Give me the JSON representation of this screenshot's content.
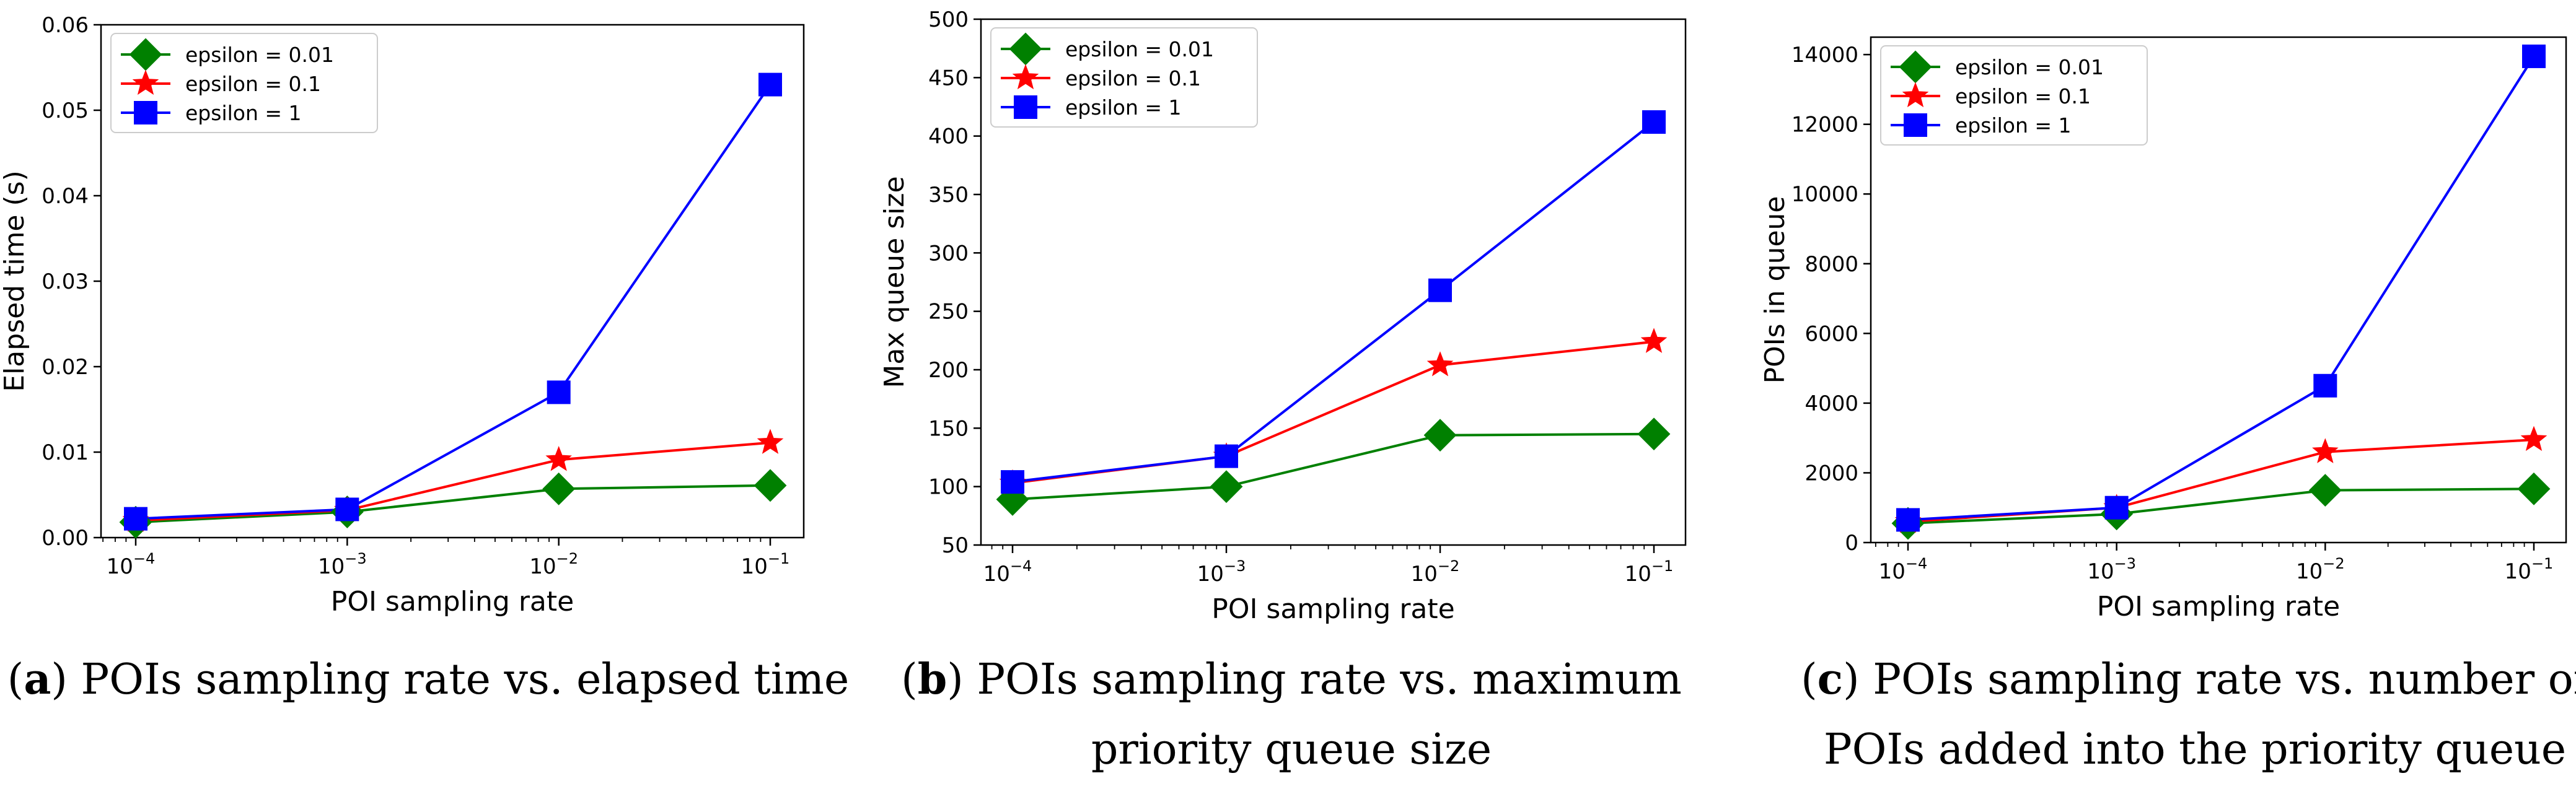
{
  "figure": {
    "captions": [
      {
        "letter": "a",
        "lines": [
          "POIs sampling rate vs. elapsed time"
        ]
      },
      {
        "letter": "b",
        "lines": [
          "POIs sampling rate vs. maximum",
          "priority queue size"
        ]
      },
      {
        "letter": "c",
        "lines": [
          "POIs sampling rate vs. number of",
          "POIs added into the priority queue"
        ]
      }
    ]
  },
  "chart_data": [
    {
      "type": "line",
      "title": "",
      "xlabel": "POI sampling rate",
      "ylabel": "Elapsed time (s)",
      "xscale": "log",
      "x": [
        0.0001,
        0.001,
        0.01,
        0.1
      ],
      "x_ticks": [
        {
          "base": "10",
          "exp": "−4"
        },
        {
          "base": "10",
          "exp": "−3"
        },
        {
          "base": "10",
          "exp": "−2"
        },
        {
          "base": "10",
          "exp": "−1"
        }
      ],
      "ylim": [
        0,
        0.06
      ],
      "y_ticks": [
        0,
        0.01,
        0.02,
        0.03,
        0.04,
        0.05,
        0.06
      ],
      "y_tick_labels": [
        "0.00",
        "0.01",
        "0.02",
        "0.03",
        "0.04",
        "0.05",
        "0.06"
      ],
      "legend_position": "top-left",
      "series": [
        {
          "name": "epsilon = 0.01",
          "color": "#008000",
          "marker": "diamond",
          "values": [
            0.0018,
            0.003,
            0.0057,
            0.0061
          ]
        },
        {
          "name": "epsilon = 0.1",
          "color": "#ff0000",
          "marker": "star",
          "values": [
            0.002,
            0.0032,
            0.0091,
            0.0111
          ]
        },
        {
          "name": "epsilon = 1",
          "color": "#0000ff",
          "marker": "square",
          "values": [
            0.0022,
            0.0033,
            0.017,
            0.053
          ]
        }
      ]
    },
    {
      "type": "line",
      "title": "",
      "xlabel": "POI sampling rate",
      "ylabel": "Max queue size",
      "xscale": "log",
      "x": [
        0.0001,
        0.001,
        0.01,
        0.1
      ],
      "x_ticks": [
        {
          "base": "10",
          "exp": "−4"
        },
        {
          "base": "10",
          "exp": "−3"
        },
        {
          "base": "10",
          "exp": "−2"
        },
        {
          "base": "10",
          "exp": "−1"
        }
      ],
      "ylim": [
        50,
        500
      ],
      "y_ticks": [
        50,
        100,
        150,
        200,
        250,
        300,
        350,
        400,
        450,
        500
      ],
      "y_tick_labels": [
        "50",
        "100",
        "150",
        "200",
        "250",
        "300",
        "350",
        "400",
        "450",
        "500"
      ],
      "legend_position": "top-left",
      "series": [
        {
          "name": "epsilon = 0.01",
          "color": "#008000",
          "marker": "diamond",
          "values": [
            89,
            100,
            144,
            145
          ]
        },
        {
          "name": "epsilon = 0.1",
          "color": "#ff0000",
          "marker": "star",
          "values": [
            103,
            126,
            204,
            224
          ]
        },
        {
          "name": "epsilon = 1",
          "color": "#0000ff",
          "marker": "square",
          "values": [
            104,
            126,
            268,
            412
          ]
        }
      ]
    },
    {
      "type": "line",
      "title": "",
      "xlabel": "POI sampling rate",
      "ylabel": "POIs in queue",
      "xscale": "log",
      "x": [
        0.0001,
        0.001,
        0.01,
        0.1
      ],
      "x_ticks": [
        {
          "base": "10",
          "exp": "−4"
        },
        {
          "base": "10",
          "exp": "−3"
        },
        {
          "base": "10",
          "exp": "−2"
        },
        {
          "base": "10",
          "exp": "−1"
        }
      ],
      "ylim": [
        0,
        14500
      ],
      "y_ticks": [
        0,
        2000,
        4000,
        6000,
        8000,
        10000,
        12000,
        14000
      ],
      "y_tick_labels": [
        "0",
        "2000",
        "4000",
        "6000",
        "8000",
        "10000",
        "12000",
        "14000"
      ],
      "legend_position": "top-left",
      "series": [
        {
          "name": "epsilon = 0.01",
          "color": "#008000",
          "marker": "diamond",
          "values": [
            550,
            820,
            1500,
            1540
          ]
        },
        {
          "name": "epsilon = 0.1",
          "color": "#ff0000",
          "marker": "star",
          "values": [
            600,
            1000,
            2600,
            2950
          ]
        },
        {
          "name": "epsilon = 1",
          "color": "#0000ff",
          "marker": "square",
          "values": [
            650,
            1000,
            4500,
            13950
          ]
        }
      ]
    }
  ]
}
